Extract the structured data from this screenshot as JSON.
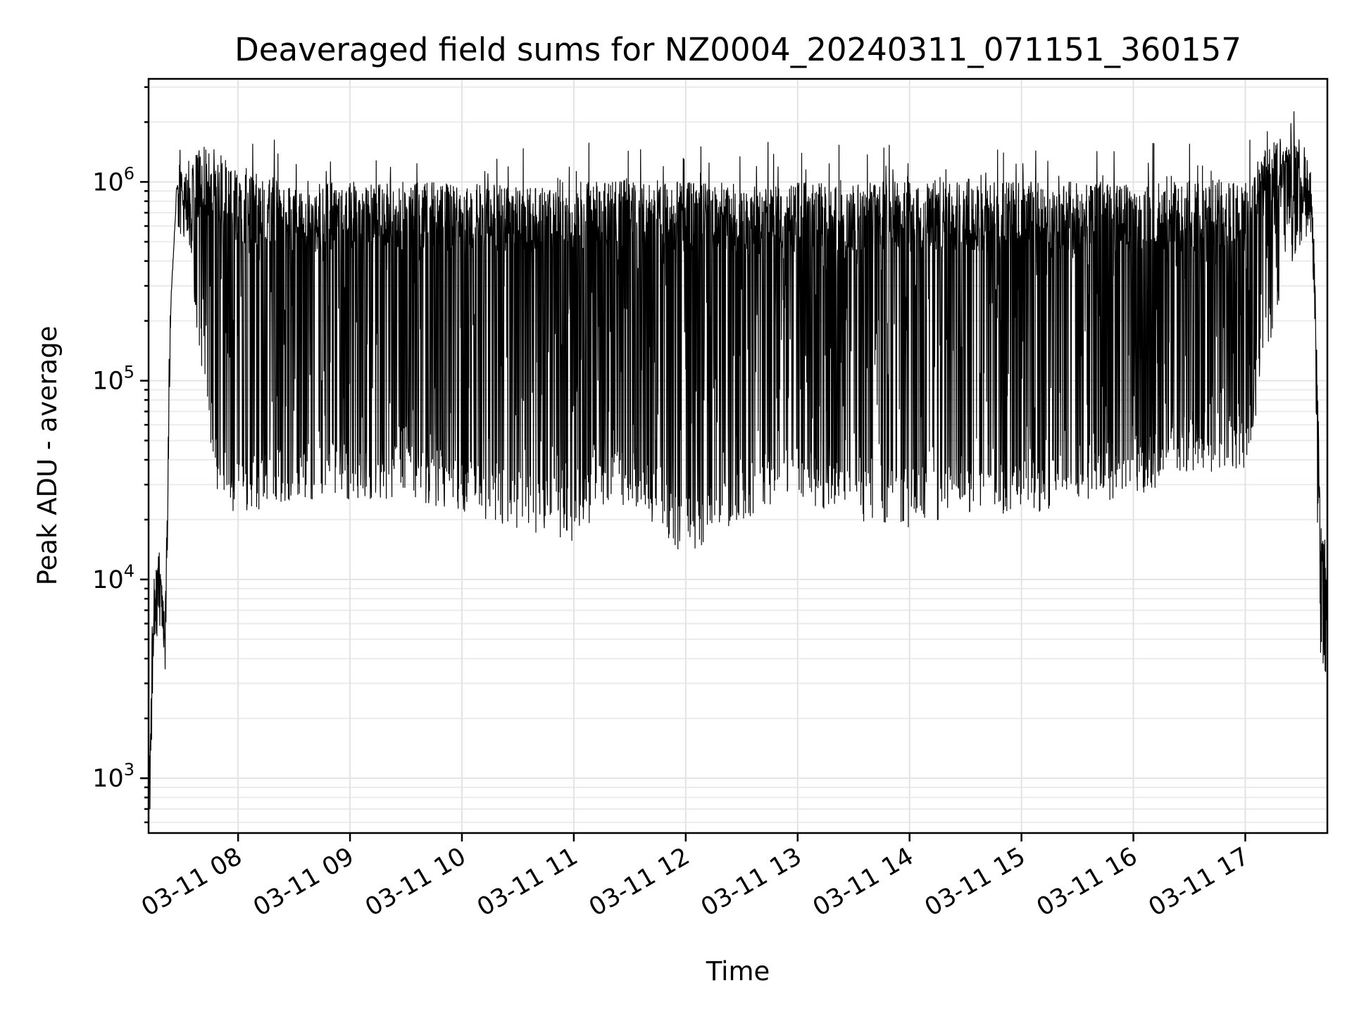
{
  "chart_data": {
    "type": "line",
    "title": "Deaveraged field sums for NZ0004_20240311_071151_360157",
    "xlabel": "Time",
    "ylabel": "Peak ADU - average",
    "y_scale": "log",
    "ylim": [
      530,
      3300000
    ],
    "xlim": [
      "2024-03-11 07:12",
      "2024-03-11 17:44"
    ],
    "grid": true,
    "legend": "none",
    "line_color": "#000000",
    "x_ticks": [
      {
        "value": "2024-03-11 08:00",
        "label": "03-11 08"
      },
      {
        "value": "2024-03-11 09:00",
        "label": "03-11 09"
      },
      {
        "value": "2024-03-11 10:00",
        "label": "03-11 10"
      },
      {
        "value": "2024-03-11 11:00",
        "label": "03-11 11"
      },
      {
        "value": "2024-03-11 12:00",
        "label": "03-11 12"
      },
      {
        "value": "2024-03-11 13:00",
        "label": "03-11 13"
      },
      {
        "value": "2024-03-11 14:00",
        "label": "03-11 14"
      },
      {
        "value": "2024-03-11 15:00",
        "label": "03-11 15"
      },
      {
        "value": "2024-03-11 16:00",
        "label": "03-11 16"
      },
      {
        "value": "2024-03-11 17:00",
        "label": "03-11 17"
      }
    ],
    "y_ticks": [
      {
        "value": 1000,
        "base": "10",
        "exp": "3"
      },
      {
        "value": 10000,
        "base": "10",
        "exp": "4"
      },
      {
        "value": 100000,
        "base": "10",
        "exp": "5"
      },
      {
        "value": 1000000,
        "base": "10",
        "exp": "6"
      }
    ],
    "envelope": {
      "description_source": "upper and lower bounds of the dense time series read from the figure",
      "x": [
        "2024-03-11 07:12",
        "2024-03-11 07:15",
        "2024-03-11 07:18",
        "2024-03-11 07:21",
        "2024-03-11 07:24",
        "2024-03-11 07:27",
        "2024-03-11 07:30",
        "2024-03-11 07:33",
        "2024-03-11 07:36",
        "2024-03-11 07:40",
        "2024-03-11 07:45",
        "2024-03-11 07:50",
        "2024-03-11 07:55",
        "2024-03-11 08:00",
        "2024-03-11 08:30",
        "2024-03-11 09:00",
        "2024-03-11 09:30",
        "2024-03-11 10:00",
        "2024-03-11 10:30",
        "2024-03-11 11:00",
        "2024-03-11 11:30",
        "2024-03-11 12:00",
        "2024-03-11 12:30",
        "2024-03-11 13:00",
        "2024-03-11 13:30",
        "2024-03-11 14:00",
        "2024-03-11 14:30",
        "2024-03-11 15:00",
        "2024-03-11 15:30",
        "2024-03-11 16:00",
        "2024-03-11 16:30",
        "2024-03-11 17:00",
        "2024-03-11 17:10",
        "2024-03-11 17:20",
        "2024-03-11 17:30",
        "2024-03-11 17:36",
        "2024-03-11 17:40",
        "2024-03-11 17:44"
      ],
      "upper": [
        800,
        11000,
        12000,
        9000,
        250000,
        900000,
        1200000,
        1100000,
        1300000,
        1500000,
        1500000,
        1400000,
        1300000,
        1100000,
        1000000,
        1000000,
        1000000,
        1000000,
        950000,
        1000000,
        1050000,
        1000000,
        1000000,
        1000000,
        1000000,
        1000000,
        1000000,
        1000000,
        1000000,
        1000000,
        1000000,
        1000000,
        1500000,
        1700000,
        1700000,
        1200000,
        30000,
        12000
      ],
      "lower": [
        800,
        6000,
        7000,
        3000,
        250000,
        900000,
        800000,
        500000,
        300000,
        100000,
        40000,
        25000,
        22000,
        20000,
        25000,
        25000,
        25000,
        22000,
        18000,
        15000,
        25000,
        13000,
        20000,
        25000,
        20000,
        18000,
        22000,
        20000,
        25000,
        25000,
        35000,
        35000,
        100000,
        300000,
        500000,
        500000,
        4000,
        3000
      ]
    }
  }
}
